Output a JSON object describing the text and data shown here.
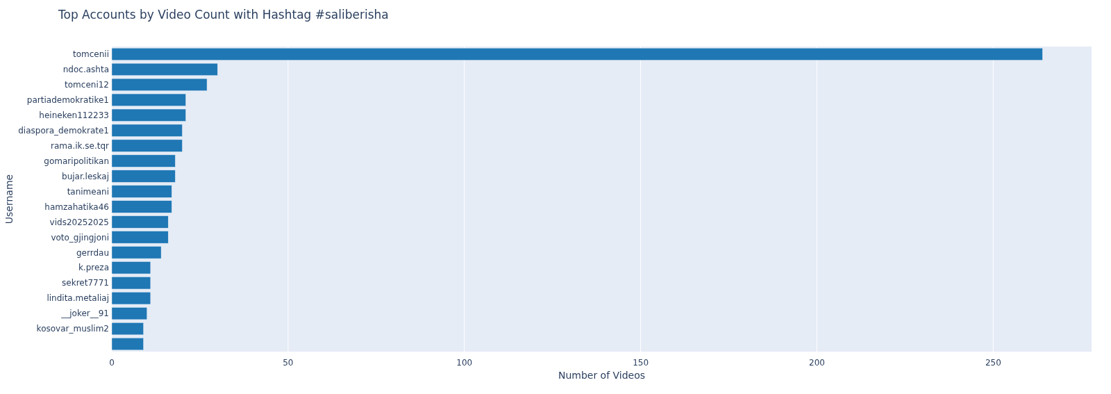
{
  "chart_data": {
    "type": "bar",
    "orientation": "horizontal",
    "title": "Top Accounts by Video Count with Hashtag #saliberisha",
    "xlabel": "Number of Videos",
    "ylabel": "Username",
    "categories": [
      "tomcenii",
      "ndoc.ashta",
      "tomceni12",
      "partiademokratike1",
      "heineken112233",
      "diaspora_demokrate1",
      "rama.ik.se.tqr",
      "gomaripolitikan",
      "bujar.leskaj",
      "tanimeani",
      "hamzahatika46",
      "vids20252025",
      "voto_gjingjoni",
      "gerrdau",
      "k.preza",
      "sekret7771",
      "lindita.metaliaj",
      "__joker__91",
      "kosovar_muslim2",
      null
    ],
    "values": [
      264,
      30,
      27,
      21,
      21,
      20,
      20,
      18,
      18,
      17,
      17,
      16,
      16,
      14,
      11,
      11,
      11,
      10,
      9,
      9
    ],
    "color": "#1f77b4",
    "xlim": [
      0,
      277.9
    ],
    "xticks": [
      0,
      50,
      100,
      150,
      200,
      250
    ],
    "grid": "x"
  }
}
